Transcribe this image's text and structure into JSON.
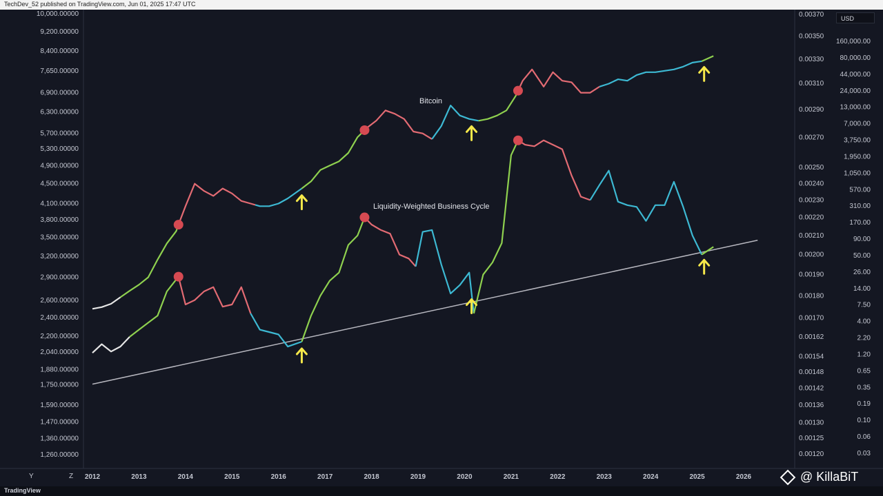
{
  "header": {
    "publisher": "TechDev_52 published on TradingView.com, Jun 01, 2025 17:47 UTC"
  },
  "footer": {
    "brand": "TradingView",
    "left_y": "Y",
    "left_z": "Z"
  },
  "currency": "USD",
  "watermark": "@ KillaBiT",
  "colors": {
    "background": "#141722",
    "up": "#8fd14f",
    "down": "#e36b73",
    "neutral": "#3db9d3",
    "pre": "#e6e6e6",
    "trend": "#b8b8c0",
    "peak": "#d64a52",
    "arrow": "#f5e84a"
  },
  "chart_data": {
    "type": "line",
    "title": "",
    "xlabel": "",
    "x_ticks": [
      "2012",
      "2013",
      "2014",
      "2015",
      "2016",
      "2017",
      "2018",
      "2019",
      "2020",
      "2021",
      "2022",
      "2023",
      "2024",
      "2025",
      "2026"
    ],
    "left_axis_ticks": [
      "10,000.00000",
      "9,200.00000",
      "8,400.00000",
      "7,650.00000",
      "6,900.00000",
      "6,300.00000",
      "5,700.00000",
      "5,300.00000",
      "4,900.00000",
      "4,500.00000",
      "4,100.00000",
      "3,800.00000",
      "3,500.00000",
      "3,200.00000",
      "2,900.00000",
      "2,600.00000",
      "2,400.00000",
      "2,200.00000",
      "2,040.00000",
      "1,880.00000",
      "1,750.00000",
      "1,590.00000",
      "1,470.00000",
      "1,360.00000",
      "1,260.00000"
    ],
    "right_axis_ticks": [
      "0.00370",
      "0.00350",
      "0.00330",
      "0.00310",
      "0.00290",
      "0.00270",
      "0.00250",
      "0.00240",
      "0.00230",
      "0.00220",
      "0.00210",
      "0.00200",
      "0.00190",
      "0.00180",
      "0.00170",
      "0.00162",
      "0.00154",
      "0.00148",
      "0.00142",
      "0.00136",
      "0.00130",
      "0.00125",
      "0.00120"
    ],
    "far_right_axis_ticks": [
      "160,000.00",
      "80,000.00",
      "44,000.00",
      "24,000.00",
      "13,000.00",
      "7,000.00",
      "3,750.00",
      "1,950.00",
      "1,050.00",
      "570.00",
      "310.00",
      "170.00",
      "90.00",
      "50.00",
      "26.00",
      "14.00",
      "7.50",
      "4.00",
      "2.20",
      "1.20",
      "0.65",
      "0.35",
      "0.19",
      "0.10",
      "0.06",
      "0.03"
    ],
    "series": [
      {
        "name": "Bitcoin",
        "x": [
          2012.0,
          2012.2,
          2012.4,
          2012.6,
          2012.8,
          2013.0,
          2013.2,
          2013.4,
          2013.6,
          2013.8,
          2014.0,
          2014.2,
          2014.4,
          2014.6,
          2014.8,
          2015.0,
          2015.2,
          2015.4,
          2015.6,
          2015.8,
          2016.0,
          2016.2,
          2016.5,
          2016.7,
          2016.9,
          2017.1,
          2017.3,
          2017.5,
          2017.7,
          2017.9,
          2018.1,
          2018.3,
          2018.5,
          2018.7,
          2018.9,
          2019.1,
          2019.3,
          2019.5,
          2019.7,
          2019.9,
          2020.1,
          2020.3,
          2020.5,
          2020.7,
          2020.9,
          2021.1,
          2021.25,
          2021.45,
          2021.7,
          2021.9,
          2022.1,
          2022.3,
          2022.5,
          2022.7,
          2022.9,
          2023.1,
          2023.3,
          2023.5,
          2023.7,
          2023.9,
          2024.1,
          2024.3,
          2024.5,
          2024.7,
          2024.9,
          2025.1,
          2025.35
        ],
        "y": [
          2500,
          2520,
          2560,
          2640,
          2720,
          2800,
          2900,
          3150,
          3400,
          3600,
          4050,
          4500,
          4350,
          4250,
          4400,
          4300,
          4150,
          4100,
          4050,
          4050,
          4100,
          4200,
          4400,
          4550,
          4800,
          4900,
          5000,
          5200,
          5600,
          5850,
          6050,
          6350,
          6250,
          6100,
          5750,
          5700,
          5550,
          5900,
          6500,
          6200,
          6100,
          6050,
          6100,
          6200,
          6350,
          6800,
          7300,
          7700,
          7100,
          7600,
          7300,
          7250,
          6900,
          6900,
          7100,
          7200,
          7350,
          7300,
          7500,
          7600,
          7600,
          7650,
          7700,
          7800,
          7950,
          8000,
          8200
        ],
        "segments": [
          {
            "state": "pre",
            "from": 2012.0,
            "to": 2012.6
          },
          {
            "state": "up",
            "from": 2012.6,
            "to": 2013.85
          },
          {
            "state": "down",
            "from": 2013.85,
            "to": 2015.5
          },
          {
            "state": "neutral",
            "from": 2015.5,
            "to": 2016.5
          },
          {
            "state": "up",
            "from": 2016.5,
            "to": 2017.85
          },
          {
            "state": "down",
            "from": 2017.85,
            "to": 2019.3
          },
          {
            "state": "neutral",
            "from": 2019.3,
            "to": 2020.3
          },
          {
            "state": "up",
            "from": 2020.3,
            "to": 2021.15
          },
          {
            "state": "down",
            "from": 2021.15,
            "to": 2022.9
          },
          {
            "state": "neutral",
            "from": 2022.9,
            "to": 2025.1
          },
          {
            "state": "up",
            "from": 2025.1,
            "to": 2025.35
          }
        ],
        "peaks": [
          2013.85,
          2017.85,
          2021.15
        ],
        "arrows": [
          {
            "x": 2016.5,
            "dir": "up"
          },
          {
            "x": 2020.15,
            "dir": "up"
          },
          {
            "x": 2025.15,
            "dir": "up"
          }
        ]
      },
      {
        "name": "Liquidity-Weighted Business Cycle",
        "x": [
          2012.0,
          2012.2,
          2012.4,
          2012.6,
          2012.8,
          2013.0,
          2013.2,
          2013.4,
          2013.6,
          2013.85,
          2014.0,
          2014.2,
          2014.4,
          2014.6,
          2014.8,
          2015.0,
          2015.2,
          2015.4,
          2015.6,
          2015.8,
          2016.0,
          2016.2,
          2016.5,
          2016.7,
          2016.9,
          2017.1,
          2017.3,
          2017.5,
          2017.7,
          2017.85,
          2018.0,
          2018.2,
          2018.4,
          2018.6,
          2018.8,
          2018.95,
          2019.1,
          2019.3,
          2019.5,
          2019.7,
          2019.9,
          2020.1,
          2020.2,
          2020.4,
          2020.6,
          2020.8,
          2021.0,
          2021.15,
          2021.3,
          2021.5,
          2021.7,
          2021.9,
          2022.1,
          2022.3,
          2022.5,
          2022.7,
          2022.9,
          2023.1,
          2023.3,
          2023.5,
          2023.7,
          2023.9,
          2024.1,
          2024.3,
          2024.5,
          2024.7,
          2024.9,
          2025.1,
          2025.35
        ],
        "y": [
          0.001555,
          0.00159,
          0.00156,
          0.00158,
          0.00162,
          0.00165,
          0.00168,
          0.00171,
          0.00182,
          0.00189,
          0.00176,
          0.00178,
          0.00182,
          0.00184,
          0.00175,
          0.00176,
          0.00184,
          0.00172,
          0.00165,
          0.00164,
          0.00163,
          0.00158,
          0.0016,
          0.00171,
          0.0018,
          0.00187,
          0.00191,
          0.00205,
          0.0021,
          0.0022,
          0.00216,
          0.00213,
          0.00211,
          0.002,
          0.00198,
          0.00194,
          0.00212,
          0.00213,
          0.00195,
          0.00181,
          0.00185,
          0.00191,
          0.00172,
          0.0019,
          0.00196,
          0.00206,
          0.00258,
          0.00268,
          0.00265,
          0.00264,
          0.00268,
          0.00265,
          0.00262,
          0.00245,
          0.00232,
          0.0023,
          0.00239,
          0.00248,
          0.00229,
          0.00227,
          0.00226,
          0.00218,
          0.00227,
          0.00227,
          0.00241,
          0.00226,
          0.0021,
          0.002,
          0.00204
        ],
        "segments": [
          {
            "state": "pre",
            "from": 2012.0,
            "to": 2012.8
          },
          {
            "state": "up",
            "from": 2012.8,
            "to": 2013.85
          },
          {
            "state": "down",
            "from": 2013.85,
            "to": 2015.4
          },
          {
            "state": "neutral",
            "from": 2015.4,
            "to": 2016.5
          },
          {
            "state": "up",
            "from": 2016.5,
            "to": 2017.85
          },
          {
            "state": "down",
            "from": 2017.85,
            "to": 2018.95
          },
          {
            "state": "neutral",
            "from": 2018.95,
            "to": 2020.2
          },
          {
            "state": "up",
            "from": 2020.2,
            "to": 2021.15
          },
          {
            "state": "down",
            "from": 2021.15,
            "to": 2022.7
          },
          {
            "state": "neutral",
            "from": 2022.7,
            "to": 2025.1
          },
          {
            "state": "up",
            "from": 2025.1,
            "to": 2025.35
          }
        ],
        "peaks": [
          2013.85,
          2017.85,
          2021.15
        ],
        "arrows": [
          {
            "x": 2016.5,
            "dir": "up"
          },
          {
            "x": 2020.15,
            "dir": "up"
          },
          {
            "x": 2025.15,
            "dir": "up"
          }
        ]
      }
    ],
    "trendline": {
      "x": [
        2012.0,
        2026.3
      ],
      "y": [
        0.001435,
        0.002075
      ]
    }
  }
}
